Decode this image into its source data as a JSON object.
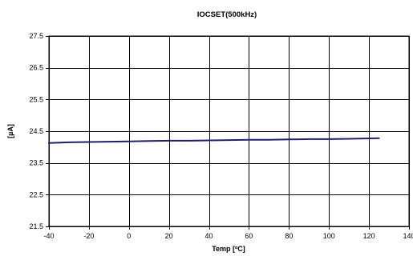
{
  "chart_data": {
    "type": "line",
    "title": "IOCSET(500kHz)",
    "xlabel": "Temp [ºC]",
    "ylabel": "[µA]",
    "xlim": [
      -40,
      140
    ],
    "ylim": [
      21.5,
      27.5
    ],
    "x_ticks": [
      -40,
      -20,
      0,
      20,
      40,
      60,
      80,
      100,
      120,
      140
    ],
    "y_ticks": [
      27.5,
      26.5,
      25.5,
      24.5,
      23.5,
      22.5,
      21.5
    ],
    "x_tick_labels": [
      "-40",
      "-20",
      "0",
      "20",
      "40",
      "60",
      "80",
      "100",
      "120",
      "140"
    ],
    "y_tick_labels": [
      "27.5",
      "26.5",
      "25.5",
      "24.5",
      "23.5",
      "22.5",
      "21.5"
    ],
    "grid": true,
    "legend": "none",
    "series": [
      {
        "color": "#1f1f6e",
        "x": [
          -40,
          -30,
          -20,
          -10,
          0,
          10,
          20,
          30,
          40,
          50,
          60,
          70,
          80,
          90,
          100,
          110,
          125
        ],
        "y": [
          24.13,
          24.15,
          24.16,
          24.17,
          24.18,
          24.19,
          24.2,
          24.2,
          24.21,
          24.22,
          24.23,
          24.23,
          24.24,
          24.25,
          24.25,
          24.26,
          24.28
        ]
      }
    ]
  }
}
